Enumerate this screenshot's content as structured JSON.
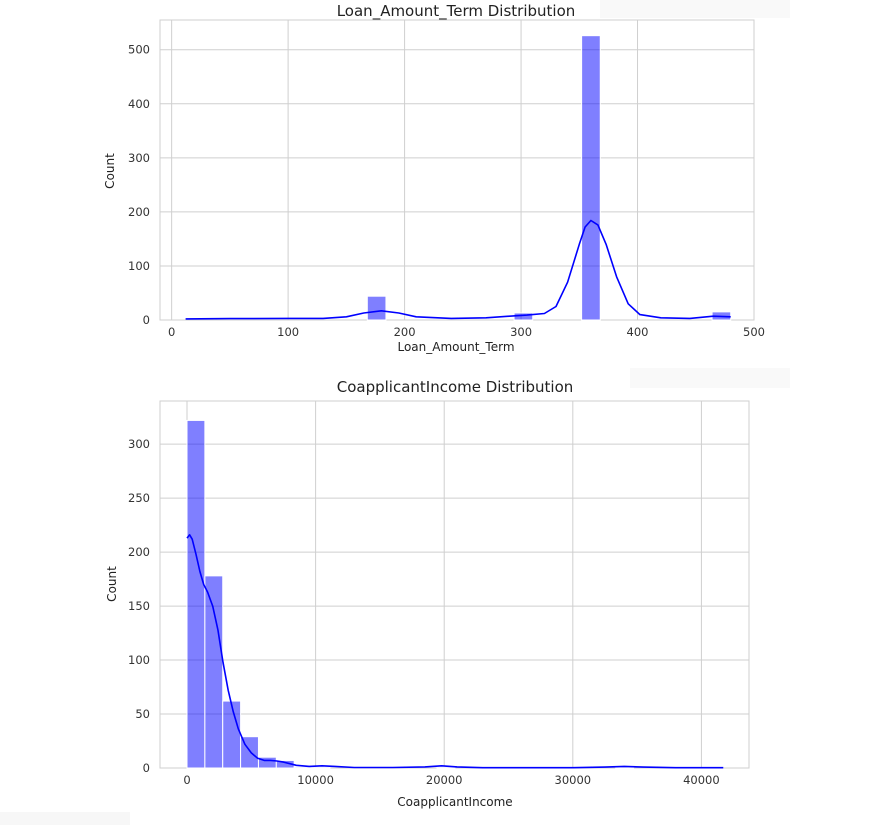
{
  "chart_data": [
    {
      "type": "bar",
      "title": "Loan_Amount_Term Distribution",
      "xlabel": "Loan_Amount_Term",
      "ylabel": "Count",
      "xlim": [
        -10,
        500
      ],
      "ylim": [
        0,
        555
      ],
      "xticks": [
        0,
        100,
        200,
        300,
        400,
        500
      ],
      "yticks": [
        0,
        100,
        200,
        300,
        400,
        500
      ],
      "grid": true,
      "bar_color": "#0000ff",
      "bar_opacity": 0.5,
      "kde_color": "#0000ff",
      "bins": [
        {
          "x0": 168,
          "x1": 184,
          "count": 44
        },
        {
          "x0": 294,
          "x1": 310,
          "count": 13
        },
        {
          "x0": 352,
          "x1": 368,
          "count": 526
        },
        {
          "x0": 464,
          "x1": 480,
          "count": 15
        }
      ],
      "kde": [
        [
          12,
          2
        ],
        [
          50,
          2.5
        ],
        [
          100,
          3
        ],
        [
          130,
          3
        ],
        [
          150,
          6
        ],
        [
          165,
          13
        ],
        [
          180,
          17
        ],
        [
          195,
          13
        ],
        [
          210,
          6
        ],
        [
          240,
          3
        ],
        [
          270,
          4
        ],
        [
          290,
          7
        ],
        [
          305,
          9
        ],
        [
          320,
          12
        ],
        [
          330,
          25
        ],
        [
          340,
          70
        ],
        [
          350,
          140
        ],
        [
          355,
          172
        ],
        [
          360,
          184
        ],
        [
          366,
          176
        ],
        [
          373,
          140
        ],
        [
          382,
          80
        ],
        [
          392,
          30
        ],
        [
          402,
          10
        ],
        [
          420,
          4
        ],
        [
          445,
          3
        ],
        [
          465,
          7
        ],
        [
          480,
          6
        ]
      ]
    },
    {
      "type": "bar",
      "title": "CoapplicantIncome Distribution",
      "xlabel": "CoapplicantIncome",
      "ylabel": "Count",
      "xlim": [
        -2100,
        43700
      ],
      "ylim": [
        0,
        340
      ],
      "xticks": [
        0,
        10000,
        20000,
        30000,
        40000
      ],
      "yticks": [
        0,
        50,
        100,
        150,
        200,
        250,
        300
      ],
      "grid": true,
      "bar_color": "#0000ff",
      "bar_opacity": 0.5,
      "kde_color": "#0000ff",
      "bins": [
        {
          "x0": 0,
          "x1": 1389,
          "count": 322
        },
        {
          "x0": 1389,
          "x1": 2778,
          "count": 178
        },
        {
          "x0": 2778,
          "x1": 4167,
          "count": 62
        },
        {
          "x0": 4167,
          "x1": 5556,
          "count": 29
        },
        {
          "x0": 5556,
          "x1": 6944,
          "count": 10
        },
        {
          "x0": 6944,
          "x1": 8333,
          "count": 7
        },
        {
          "x0": 8333,
          "x1": 9722,
          "count": 1
        },
        {
          "x0": 9722,
          "x1": 11111,
          "count": 1
        },
        {
          "x0": 19444,
          "x1": 20833,
          "count": 1
        },
        {
          "x0": 33333,
          "x1": 34722,
          "count": 1
        },
        {
          "x0": 40278,
          "x1": 41667,
          "count": 1
        }
      ],
      "kde": [
        [
          0,
          213
        ],
        [
          200,
          216
        ],
        [
          400,
          212
        ],
        [
          700,
          198
        ],
        [
          1000,
          182
        ],
        [
          1300,
          170
        ],
        [
          1600,
          163
        ],
        [
          2000,
          150
        ],
        [
          2400,
          128
        ],
        [
          2800,
          98
        ],
        [
          3200,
          72
        ],
        [
          3600,
          52
        ],
        [
          4000,
          36
        ],
        [
          4500,
          22
        ],
        [
          5000,
          14
        ],
        [
          5500,
          9
        ],
        [
          6000,
          7
        ],
        [
          6500,
          7
        ],
        [
          7000,
          6.5
        ],
        [
          7500,
          5.5
        ],
        [
          8000,
          4
        ],
        [
          8500,
          2.5
        ],
        [
          9500,
          1.5
        ],
        [
          10500,
          2
        ],
        [
          11500,
          1.5
        ],
        [
          13000,
          0.5
        ],
        [
          16000,
          0.5
        ],
        [
          18500,
          1
        ],
        [
          19800,
          2
        ],
        [
          21000,
          1
        ],
        [
          23000,
          0.3
        ],
        [
          30000,
          0.3
        ],
        [
          32500,
          0.8
        ],
        [
          34000,
          1.5
        ],
        [
          35500,
          0.8
        ],
        [
          38000,
          0.3
        ],
        [
          41700,
          0.3
        ]
      ]
    }
  ]
}
